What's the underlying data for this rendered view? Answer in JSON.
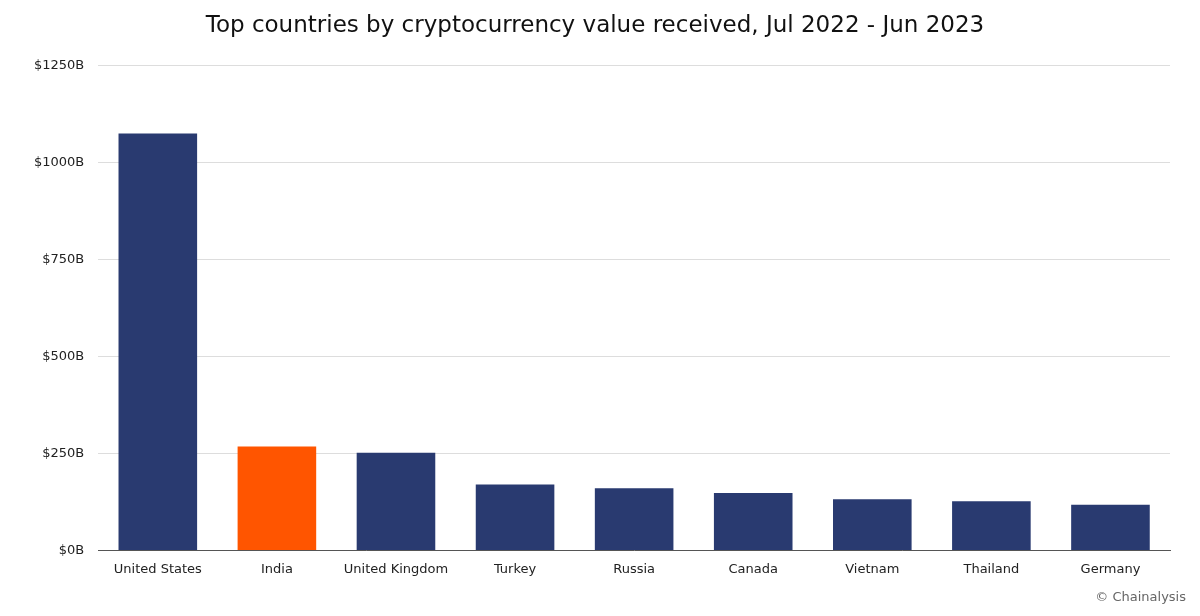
{
  "chart_data": {
    "type": "bar",
    "title": "Top countries by cryptocurrency value received, Jul 2022 - Jun 2023",
    "categories": [
      "United States",
      "India",
      "United Kingdom",
      "Turkey",
      "Russia",
      "Canada",
      "Vietnam",
      "Thailand",
      "Germany"
    ],
    "values": [
      1075,
      268,
      252,
      170,
      160,
      148,
      132,
      127,
      118
    ],
    "colors": [
      "#293a70",
      "#ff5500",
      "#293a70",
      "#293a70",
      "#293a70",
      "#293a70",
      "#293a70",
      "#293a70",
      "#293a70"
    ],
    "ylim": [
      0,
      1250
    ],
    "yticks": [
      {
        "value": 0,
        "label": "$0B"
      },
      {
        "value": 250,
        "label": "$250B"
      },
      {
        "value": 500,
        "label": "$500B"
      },
      {
        "value": 750,
        "label": "$750B"
      },
      {
        "value": 1000,
        "label": "$1000B"
      },
      {
        "value": 1250,
        "label": "$1250B"
      }
    ],
    "grid": true,
    "annotation": "© Chainalysis"
  }
}
